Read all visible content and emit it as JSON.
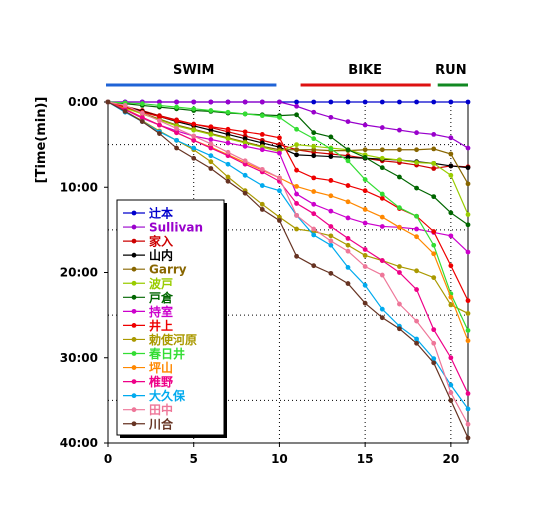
{
  "chart_data": {
    "type": "line",
    "title": "",
    "xlabel": "",
    "ylabel": "[Time(min)]",
    "xlim": [
      0,
      21
    ],
    "ylim": [
      0,
      40
    ],
    "y_reversed": true,
    "x_ticks": [
      "0",
      "5",
      "10",
      "15",
      "20"
    ],
    "y_ticks": [
      "0:00",
      "10:00",
      "20:00",
      "30:00",
      "40:00"
    ],
    "grid": "dotted",
    "legend_position": "left",
    "segments": [
      {
        "label": "SWIM",
        "range": [
          0,
          10
        ],
        "color": "#1f63d6"
      },
      {
        "label": "BIKE",
        "range": [
          11,
          19
        ],
        "color": "#dd1111"
      },
      {
        "label": "RUN",
        "range": [
          19,
          21
        ],
        "color": "#118822"
      }
    ],
    "x": [
      0,
      1,
      2,
      3,
      4,
      5,
      6,
      7,
      8,
      9,
      10,
      11,
      12,
      13,
      14,
      15,
      16,
      17,
      18,
      19,
      20,
      21
    ],
    "series": [
      {
        "name": "辻本",
        "color": "#0000cc",
        "values": [
          0,
          0,
          0,
          0,
          0,
          0,
          0,
          0,
          0,
          0,
          0,
          0,
          0,
          0,
          0,
          0,
          0,
          0,
          0,
          0,
          0,
          0
        ]
      },
      {
        "name": "Sullivan",
        "color": "#9900cc",
        "values": [
          0,
          0,
          0,
          0,
          0,
          0,
          0,
          0,
          0,
          0,
          0,
          0.5,
          1.2,
          1.8,
          2.3,
          2.7,
          3.0,
          3.3,
          3.6,
          3.8,
          4.2,
          5.4
        ]
      },
      {
        "name": "家入",
        "color": "#cc0000",
        "values": [
          0,
          0.5,
          1.0,
          1.6,
          2.1,
          2.6,
          3.0,
          3.5,
          4.0,
          4.5,
          5.0,
          5.6,
          5.9,
          6.1,
          6.3,
          6.6,
          6.9,
          7.1,
          7.4,
          7.8,
          7.5,
          7.6
        ]
      },
      {
        "name": "山内",
        "color": "#000000",
        "values": [
          0,
          0.5,
          1.1,
          1.7,
          2.3,
          2.8,
          3.3,
          3.8,
          4.3,
          4.8,
          5.3,
          6.2,
          6.3,
          6.4,
          6.5,
          6.6,
          6.7,
          6.8,
          7.0,
          7.2,
          7.5,
          7.7
        ]
      },
      {
        "name": "Garry",
        "color": "#886600",
        "values": [
          0,
          0.6,
          1.3,
          2.0,
          2.7,
          3.2,
          3.7,
          4.2,
          4.7,
          5.2,
          5.6,
          5.6,
          5.6,
          5.7,
          5.7,
          5.6,
          5.6,
          5.6,
          5.6,
          5.5,
          6.1,
          9.6
        ]
      },
      {
        "name": "波戸",
        "color": "#99cc00",
        "values": [
          0,
          0.7,
          1.4,
          2.1,
          2.8,
          3.3,
          3.8,
          4.3,
          4.8,
          5.3,
          5.8,
          5.0,
          5.2,
          5.4,
          5.6,
          6.2,
          6.6,
          6.8,
          7.1,
          7.2,
          8.6,
          13.2
        ]
      },
      {
        "name": "戸倉",
        "color": "#006600",
        "values": [
          0,
          0.2,
          0.4,
          0.6,
          0.8,
          1.0,
          1.1,
          1.3,
          1.4,
          1.5,
          1.6,
          1.5,
          3.6,
          4.1,
          5.6,
          6.5,
          7.7,
          8.8,
          10.1,
          11.1,
          13.0,
          14.4
        ]
      },
      {
        "name": "持室",
        "color": "#cc00cc",
        "values": [
          0,
          0.9,
          1.9,
          2.7,
          3.4,
          4.0,
          4.4,
          4.8,
          5.2,
          5.6,
          6.0,
          10.8,
          12.0,
          12.8,
          13.6,
          14.2,
          14.6,
          14.7,
          14.9,
          15.3,
          15.7,
          17.6
        ]
      },
      {
        "name": "井上",
        "color": "#ee0000",
        "values": [
          0,
          0.6,
          1.2,
          1.7,
          2.2,
          2.6,
          2.9,
          3.2,
          3.5,
          3.8,
          4.2,
          8.0,
          8.9,
          9.2,
          9.8,
          10.4,
          11.3,
          12.5,
          13.4,
          15.2,
          19.2,
          23.3
        ]
      },
      {
        "name": "勅使河原",
        "color": "#aa9900",
        "values": [
          0,
          1.1,
          2.2,
          3.4,
          4.5,
          5.6,
          7.0,
          8.8,
          10.4,
          12.0,
          13.5,
          14.9,
          15.2,
          15.7,
          16.8,
          18.0,
          18.6,
          19.3,
          19.8,
          20.6,
          23.8,
          24.8
        ]
      },
      {
        "name": "春日井",
        "color": "#33dd33",
        "values": [
          0,
          0.1,
          0.2,
          0.4,
          0.6,
          0.8,
          1.0,
          1.2,
          1.4,
          1.6,
          1.8,
          3.2,
          4.3,
          5.5,
          6.9,
          9.1,
          10.8,
          12.4,
          13.4,
          16.8,
          22.5,
          26.8
        ]
      },
      {
        "name": "坪山",
        "color": "#ff8800",
        "values": [
          0,
          0.8,
          1.8,
          2.7,
          3.6,
          4.5,
          5.3,
          6.2,
          7.1,
          8.0,
          8.9,
          9.9,
          10.5,
          11.0,
          11.7,
          12.6,
          13.5,
          14.7,
          15.8,
          17.8,
          22.9,
          28.0
        ]
      },
      {
        "name": "椎野",
        "color": "#ee0088",
        "values": [
          0,
          0.9,
          1.8,
          2.7,
          3.6,
          4.5,
          5.4,
          6.3,
          7.3,
          8.2,
          9.3,
          11.9,
          13.1,
          14.6,
          16.0,
          17.3,
          18.6,
          20.0,
          22.0,
          26.7,
          30.0,
          34.2
        ]
      },
      {
        "name": "大久保",
        "color": "#00aaee",
        "values": [
          0,
          1.2,
          2.3,
          3.5,
          4.5,
          5.4,
          6.3,
          7.3,
          8.6,
          9.8,
          10.4,
          13.3,
          15.6,
          16.8,
          19.4,
          21.5,
          24.3,
          26.3,
          27.8,
          30.1,
          33.2,
          36.0
        ]
      },
      {
        "name": "田中",
        "color": "#ee7799",
        "values": [
          0,
          0.4,
          1.3,
          2.2,
          3.1,
          4.0,
          4.9,
          5.9,
          6.9,
          7.9,
          8.9,
          13.3,
          14.9,
          16.3,
          17.5,
          19.3,
          20.3,
          23.7,
          25.7,
          28.3,
          34.1,
          37.8
        ]
      },
      {
        "name": "川合",
        "color": "#663322",
        "values": [
          0,
          1.1,
          2.3,
          3.7,
          5.4,
          6.6,
          7.8,
          9.3,
          10.7,
          12.6,
          13.9,
          18.1,
          19.2,
          20.1,
          21.3,
          23.6,
          25.3,
          26.6,
          28.3,
          30.6,
          35.0,
          39.4
        ]
      }
    ]
  }
}
